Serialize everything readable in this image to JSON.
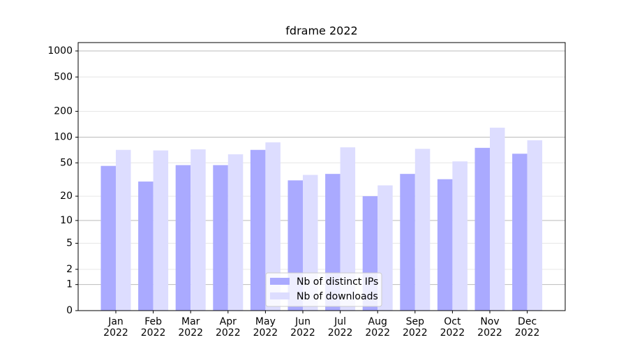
{
  "chart_data": {
    "type": "bar",
    "title": "fdrame 2022",
    "categories": [
      "Jan\n2022",
      "Feb\n2022",
      "Mar\n2022",
      "Apr\n2022",
      "May\n2022",
      "Jun\n2022",
      "Jul\n2022",
      "Aug\n2022",
      "Sep\n2022",
      "Oct\n2022",
      "Nov\n2022",
      "Dec\n2022"
    ],
    "series": [
      {
        "name": "Nb of distinct IPs",
        "color": "#aaaaff",
        "values": [
          46,
          30,
          47,
          47,
          71,
          31,
          37,
          20,
          37,
          32,
          75,
          64
        ]
      },
      {
        "name": "Nb of downloads",
        "color": "#ddddff",
        "values": [
          71,
          70,
          72,
          63,
          87,
          36,
          76,
          27,
          73,
          52,
          129,
          92
        ]
      }
    ],
    "yscale": "log1p",
    "ylim": [
      0,
      1250
    ],
    "yticks": [
      0,
      1,
      2,
      5,
      10,
      20,
      50,
      100,
      200,
      500,
      1000
    ],
    "grid": true,
    "legend": "lower center"
  }
}
